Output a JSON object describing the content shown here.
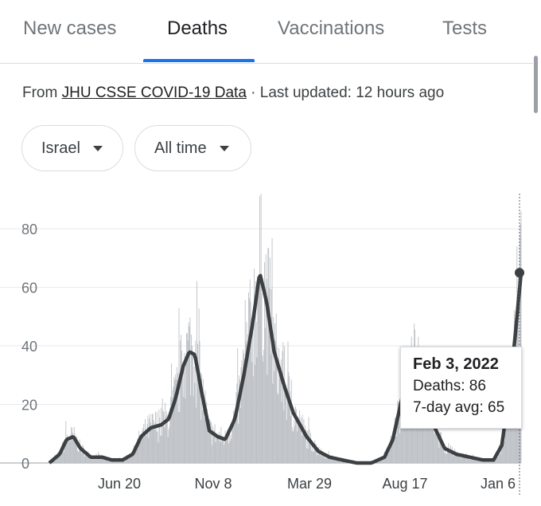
{
  "tabs": [
    {
      "label": "New cases",
      "active": false
    },
    {
      "label": "Deaths",
      "active": true
    },
    {
      "label": "Vaccinations",
      "active": false
    },
    {
      "label": "Tests",
      "active": false
    }
  ],
  "source": {
    "prefix": "From ",
    "link": "JHU CSSE COVID-19 Data",
    "suffix": " · Last updated: 12 hours ago"
  },
  "filters": {
    "location": "Israel",
    "range": "All time"
  },
  "tooltip": {
    "date": "Feb 3, 2022",
    "deaths_label": "Deaths: 86",
    "avg_label": "7-day avg: 65"
  },
  "colors": {
    "accent": "#1a73e8",
    "bar": "#bdc1c6",
    "line": "#3c4043",
    "grid": "#e8eaed"
  },
  "chart_data": {
    "type": "bar",
    "ylim": [
      0,
      92
    ],
    "yticks": [
      0,
      20,
      40,
      60,
      80
    ],
    "xticks": [
      "Jun 20",
      "Nov 8",
      "Mar 29",
      "Aug 17",
      "Jan 6"
    ],
    "x_range": [
      "2020-03-21",
      "2022-02-03"
    ],
    "series": [
      {
        "name": "Deaths",
        "kind": "bar"
      },
      {
        "name": "7-day avg",
        "kind": "line",
        "points": [
          [
            "2020-03-21",
            0
          ],
          [
            "2020-04-05",
            3
          ],
          [
            "2020-04-15",
            8
          ],
          [
            "2020-04-25",
            9
          ],
          [
            "2020-05-05",
            5
          ],
          [
            "2020-05-20",
            2
          ],
          [
            "2020-06-05",
            2
          ],
          [
            "2020-06-20",
            1
          ],
          [
            "2020-07-05",
            1
          ],
          [
            "2020-07-20",
            3
          ],
          [
            "2020-08-01",
            9
          ],
          [
            "2020-08-15",
            12
          ],
          [
            "2020-08-30",
            13
          ],
          [
            "2020-09-10",
            15
          ],
          [
            "2020-09-20",
            22
          ],
          [
            "2020-10-01",
            33
          ],
          [
            "2020-10-10",
            38
          ],
          [
            "2020-10-18",
            37
          ],
          [
            "2020-10-28",
            24
          ],
          [
            "2020-11-08",
            11
          ],
          [
            "2020-11-20",
            9
          ],
          [
            "2020-12-01",
            8
          ],
          [
            "2020-12-15",
            15
          ],
          [
            "2020-12-28",
            30
          ],
          [
            "2021-01-10",
            48
          ],
          [
            "2021-01-20",
            65
          ],
          [
            "2021-01-30",
            55
          ],
          [
            "2021-02-10",
            38
          ],
          [
            "2021-02-25",
            26
          ],
          [
            "2021-03-10",
            17
          ],
          [
            "2021-03-29",
            9
          ],
          [
            "2021-04-15",
            4
          ],
          [
            "2021-05-01",
            2
          ],
          [
            "2021-05-20",
            1
          ],
          [
            "2021-06-10",
            0
          ],
          [
            "2021-07-01",
            0
          ],
          [
            "2021-07-20",
            2
          ],
          [
            "2021-08-01",
            8
          ],
          [
            "2021-08-17",
            25
          ],
          [
            "2021-08-30",
            32
          ],
          [
            "2021-09-10",
            29
          ],
          [
            "2021-09-20",
            22
          ],
          [
            "2021-10-01",
            12
          ],
          [
            "2021-10-15",
            5
          ],
          [
            "2021-11-01",
            3
          ],
          [
            "2021-11-20",
            2
          ],
          [
            "2021-12-10",
            1
          ],
          [
            "2021-12-25",
            1
          ],
          [
            "2022-01-06",
            6
          ],
          [
            "2022-01-20",
            30
          ],
          [
            "2022-02-03",
            65
          ]
        ]
      }
    ],
    "highlight": {
      "date": "2022-02-03",
      "deaths": 86,
      "avg": 65
    }
  }
}
